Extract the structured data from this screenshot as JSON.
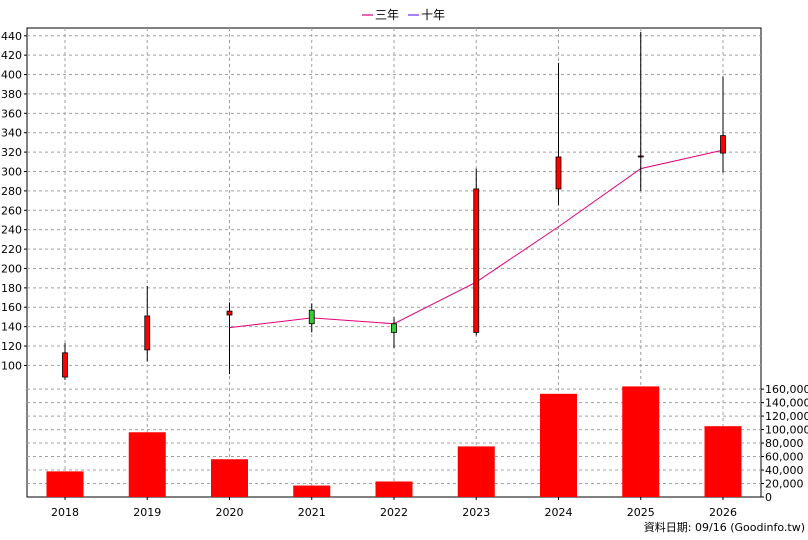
{
  "legend": [
    {
      "label": "三年",
      "color": "#e0007a"
    },
    {
      "label": "十年",
      "color": "#6a2cff"
    }
  ],
  "source_label": "資料日期: 09/16  (Goodinfo.tw)",
  "colors": {
    "up": "#ff0000",
    "down": "#33cc33",
    "bar": "#ff0000",
    "line": "#e0007a",
    "grid": "#a0a0a0"
  },
  "chart_data": {
    "type": "line",
    "categories": [
      "2018",
      "2019",
      "2020",
      "2021",
      "2022",
      "2023",
      "2024",
      "2025",
      "2026"
    ],
    "price_axis": {
      "ylim": [
        86,
        448
      ],
      "ticks": [
        100,
        120,
        140,
        160,
        180,
        200,
        220,
        240,
        260,
        280,
        300,
        320,
        340,
        360,
        380,
        400,
        420,
        440
      ]
    },
    "volume_axis": {
      "ylim": [
        0,
        175000
      ],
      "ticks": [
        0,
        20000,
        40000,
        60000,
        80000,
        100000,
        120000,
        140000,
        160000
      ],
      "tick_labels": [
        "0",
        "20,000",
        "40,000",
        "60,000",
        "80,000",
        "100,000",
        "120,000",
        "140,000",
        "160,000"
      ]
    },
    "candles": [
      {
        "x": "2018",
        "open": 88,
        "high": 123,
        "low": 85,
        "close": 113
      },
      {
        "x": "2019",
        "open": 116,
        "high": 182,
        "low": 104,
        "close": 151
      },
      {
        "x": "2020",
        "open": 152,
        "high": 165,
        "low": 91,
        "close": 156
      },
      {
        "x": "2021",
        "open": 157,
        "high": 164,
        "low": 134,
        "close": 143
      },
      {
        "x": "2022",
        "open": 143,
        "high": 150,
        "low": 118,
        "close": 134
      },
      {
        "x": "2023",
        "open": 134,
        "high": 303,
        "low": 131,
        "close": 282
      },
      {
        "x": "2024",
        "open": 282,
        "high": 412,
        "low": 265,
        "close": 315
      },
      {
        "x": "2025",
        "open": 315,
        "high": 444,
        "low": 280,
        "close": 316
      },
      {
        "x": "2026",
        "open": 319,
        "high": 398,
        "low": 299,
        "close": 337
      }
    ],
    "series": [
      {
        "name": "三年",
        "x": [
          "2020",
          "2021",
          "2022",
          "2023",
          "2024",
          "2025",
          "2026"
        ],
        "values": [
          139,
          149,
          143,
          186,
          243,
          303,
          322
        ]
      }
    ],
    "volume": [
      38000,
      96000,
      56000,
      17000,
      23000,
      75000,
      153000,
      164000,
      105000
    ]
  }
}
